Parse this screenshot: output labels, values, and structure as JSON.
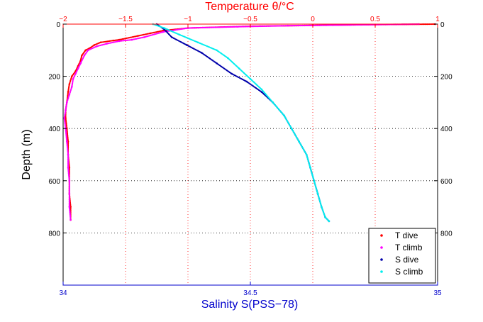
{
  "chart_data": {
    "type": "scatter",
    "title": "",
    "top_axis": {
      "label": "Temperature θ/°C",
      "color": "#ff0000",
      "range": [
        -2,
        1
      ],
      "ticks": [
        -2,
        -1.5,
        -1,
        -0.5,
        0,
        0.5,
        1
      ],
      "tick_labels": [
        "−2",
        "−1.5",
        "−1",
        "−0.5",
        "0",
        "0.5",
        "1"
      ]
    },
    "bottom_axis": {
      "label": "Salinity S(PSS−78)",
      "color": "#0000cc",
      "range": [
        34,
        35
      ],
      "ticks": [
        34,
        34.5,
        35
      ],
      "tick_labels": [
        "34",
        "34.5",
        "35"
      ]
    },
    "y_axis": {
      "label": "Depth (m)",
      "range": [
        0,
        1000
      ],
      "reversed": true,
      "ticks": [
        0,
        200,
        400,
        600,
        800
      ],
      "tick_labels": [
        "0",
        "200",
        "400",
        "600",
        "800"
      ]
    },
    "grid": true,
    "legend_position": "bottom-right",
    "series": [
      {
        "name": "T dive",
        "color": "#ff0000",
        "axis": "top",
        "points": [
          [
            0.98,
            0
          ],
          [
            0.5,
            2
          ],
          [
            0.0,
            5
          ],
          [
            -0.5,
            8
          ],
          [
            -1.0,
            15
          ],
          [
            -1.2,
            25
          ],
          [
            -1.3,
            35
          ],
          [
            -1.4,
            45
          ],
          [
            -1.5,
            55
          ],
          [
            -1.55,
            60
          ],
          [
            -1.6,
            63
          ],
          [
            -1.7,
            70
          ],
          [
            -1.75,
            80
          ],
          [
            -1.78,
            90
          ],
          [
            -1.82,
            100
          ],
          [
            -1.85,
            120
          ],
          [
            -1.86,
            140
          ],
          [
            -1.88,
            160
          ],
          [
            -1.9,
            180
          ],
          [
            -1.93,
            200
          ],
          [
            -1.95,
            230
          ],
          [
            -1.96,
            260
          ],
          [
            -1.97,
            300
          ],
          [
            -1.98,
            330
          ],
          [
            -1.98,
            360
          ],
          [
            -1.97,
            400
          ],
          [
            -1.96,
            450
          ],
          [
            -1.96,
            500
          ],
          [
            -1.95,
            550
          ],
          [
            -1.95,
            600
          ],
          [
            -1.95,
            650
          ],
          [
            -1.94,
            700
          ],
          [
            -1.94,
            750
          ]
        ]
      },
      {
        "name": "T climb",
        "color": "#ff00ff",
        "axis": "top",
        "points": [
          [
            0.85,
            0
          ],
          [
            0.3,
            3
          ],
          [
            -0.2,
            6
          ],
          [
            -0.6,
            10
          ],
          [
            -1.0,
            15
          ],
          [
            -1.2,
            30
          ],
          [
            -1.35,
            50
          ],
          [
            -1.45,
            60
          ],
          [
            -1.55,
            65
          ],
          [
            -1.65,
            75
          ],
          [
            -1.73,
            85
          ],
          [
            -1.8,
            100
          ],
          [
            -1.83,
            120
          ],
          [
            -1.86,
            150
          ],
          [
            -1.88,
            170
          ],
          [
            -1.9,
            190
          ],
          [
            -1.92,
            210
          ],
          [
            -1.93,
            240
          ],
          [
            -1.95,
            270
          ],
          [
            -1.97,
            300
          ],
          [
            -1.98,
            330
          ],
          [
            -1.99,
            360
          ],
          [
            -1.98,
            400
          ],
          [
            -1.97,
            450
          ],
          [
            -1.96,
            500
          ],
          [
            -1.96,
            550
          ],
          [
            -1.95,
            600
          ],
          [
            -1.95,
            650
          ],
          [
            -1.95,
            700
          ],
          [
            -1.94,
            750
          ]
        ]
      },
      {
        "name": "S dive",
        "color": "#0000aa",
        "axis": "bottom",
        "points": [
          [
            34.25,
            0
          ],
          [
            34.27,
            20
          ],
          [
            34.29,
            50
          ],
          [
            34.33,
            80
          ],
          [
            34.37,
            110
          ],
          [
            34.41,
            150
          ],
          [
            34.45,
            190
          ],
          [
            34.49,
            220
          ],
          [
            34.53,
            260
          ],
          [
            34.56,
            300
          ],
          [
            34.59,
            350
          ],
          [
            34.61,
            400
          ],
          [
            34.63,
            450
          ],
          [
            34.65,
            500
          ],
          [
            34.66,
            550
          ],
          [
            34.67,
            600
          ],
          [
            34.68,
            650
          ],
          [
            34.69,
            700
          ],
          [
            34.7,
            740
          ],
          [
            34.71,
            755
          ]
        ]
      },
      {
        "name": "S climb",
        "color": "#00eeee",
        "axis": "bottom",
        "points": [
          [
            34.24,
            0
          ],
          [
            34.27,
            15
          ],
          [
            34.31,
            40
          ],
          [
            34.36,
            70
          ],
          [
            34.41,
            100
          ],
          [
            34.44,
            130
          ],
          [
            34.47,
            170
          ],
          [
            34.5,
            210
          ],
          [
            34.53,
            250
          ],
          [
            34.56,
            300
          ],
          [
            34.59,
            350
          ],
          [
            34.61,
            400
          ],
          [
            34.63,
            450
          ],
          [
            34.65,
            500
          ],
          [
            34.66,
            550
          ],
          [
            34.67,
            600
          ],
          [
            34.68,
            650
          ],
          [
            34.69,
            700
          ],
          [
            34.7,
            740
          ],
          [
            34.71,
            755
          ]
        ]
      }
    ]
  }
}
